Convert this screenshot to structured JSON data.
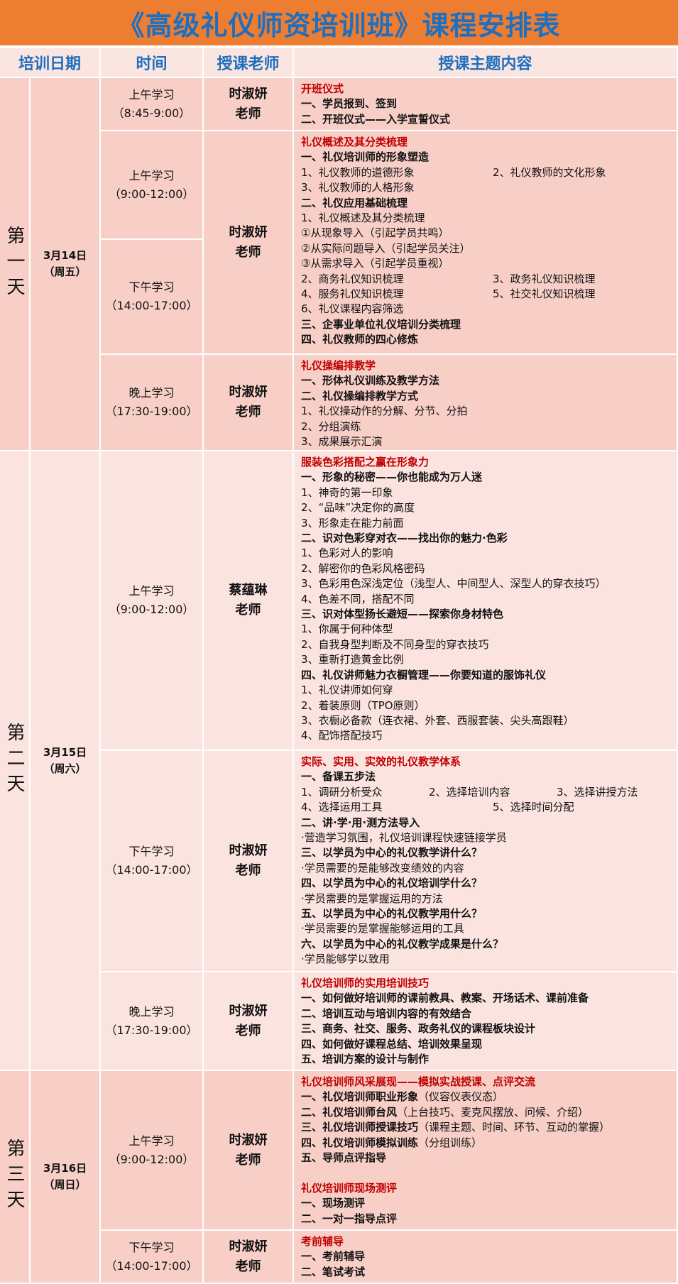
{
  "title": "《高级礼仪师资培训班》课程安排表",
  "headers": [
    "培训日期",
    "时间",
    "授课老师",
    "授课主题内容"
  ],
  "colors": {
    "title_bg": "#ED7D31",
    "title_text": "#1F6FC0",
    "heading_red": "#C00000",
    "row_dark": "#F8CFC7",
    "row_light": "#FBE4E0"
  },
  "days": [
    {
      "day": "第一天",
      "date": "3月14日",
      "weekday": "（周五）"
    },
    {
      "day": "第二天",
      "date": "3月15日",
      "weekday": "（周六）"
    },
    {
      "day": "第三天",
      "date": "3月16日",
      "weekday": "（周日）"
    }
  ],
  "sessions": [
    {
      "period": "上午学习",
      "time": "（8:45-9:00）"
    },
    {
      "period": "上午学习",
      "time": "（9:00-12:00）"
    },
    {
      "period": "下午学习",
      "time": "（14:00-17:00）"
    },
    {
      "period": "晚上学习",
      "time": "（17:30-19:00）"
    },
    {
      "period": "上午学习",
      "time": "（9:00-12:00）"
    },
    {
      "period": "下午学习",
      "time": "（14:00-17:00）"
    },
    {
      "period": "晚上学习",
      "time": "（17:30-19:00）"
    },
    {
      "period": "上午学习",
      "time": "（9:00-12:00）"
    },
    {
      "period": "下午学习",
      "time": "（14:00-17:00）"
    }
  ],
  "teachers": [
    {
      "name": "时淑妍",
      "title": "老师"
    },
    {
      "name": "时淑妍",
      "title": "老师"
    },
    {
      "name": "时淑妍",
      "title": "老师"
    },
    {
      "name": "蔡蕴琳",
      "title": "老师"
    },
    {
      "name": "时淑妍",
      "title": "老师"
    },
    {
      "name": "时淑妍",
      "title": "老师"
    },
    {
      "name": "时淑妍",
      "title": "老师"
    },
    {
      "name": "时淑妍",
      "title": "老师"
    }
  ],
  "contents": [
    [
      {
        "s": "r",
        "t": "开班仪式"
      },
      {
        "s": "b",
        "t": "一、学员报到、签到"
      },
      {
        "s": "b",
        "t": "二、开班仪式——入学宣誓仪式"
      }
    ],
    [
      {
        "s": "r",
        "t": "礼仪概述及其分类梳理"
      },
      {
        "s": "b",
        "t": "一、礼仪培训师的形象塑造"
      },
      {
        "s": "n",
        "cols": [
          "1、礼仪教师的道德形象",
          "2、礼仪教师的文化形象"
        ]
      },
      {
        "s": "n",
        "t": "3、礼仪教师的人格形象"
      },
      {
        "s": "b",
        "t": "二、礼仪应用基础梳理"
      },
      {
        "s": "n",
        "t": "1、礼仪概述及其分类梳理"
      },
      {
        "s": "n",
        "t": "①从现象导入（引起学员共鸣）"
      },
      {
        "s": "n",
        "t": "②从实际问题导入（引起学员关注）"
      },
      {
        "s": "n",
        "t": "③从需求导入（引起学员重视）"
      },
      {
        "s": "n",
        "cols": [
          "2、商务礼仪知识梳理",
          "3、政务礼仪知识梳理"
        ]
      },
      {
        "s": "n",
        "cols": [
          "4、服务礼仪知识梳理",
          "5、社交礼仪知识梳理"
        ]
      },
      {
        "s": "n",
        "t": "6、礼仪课程内容筛选"
      },
      {
        "s": "b",
        "t": "三、企事业单位礼仪培训分类梳理"
      },
      {
        "s": "b",
        "t": "四、礼仪教师的四心修炼"
      }
    ],
    [
      {
        "s": "r",
        "t": "礼仪操编排教学"
      },
      {
        "s": "b",
        "t": "一、形体礼仪训练及教学方法"
      },
      {
        "s": "b",
        "t": "二、礼仪操编排教学方式"
      },
      {
        "s": "n",
        "t": "1、礼仪操动作的分解、分节、分拍"
      },
      {
        "s": "n",
        "t": "2、分组演练"
      },
      {
        "s": "n",
        "t": "3、成果展示汇演"
      }
    ],
    [
      {
        "s": "r",
        "t": "服装色彩搭配之赢在形象力"
      },
      {
        "s": "b",
        "t": "一、形象的秘密——你也能成为万人迷"
      },
      {
        "s": "n",
        "t": "1、神奇的第一印象"
      },
      {
        "s": "n",
        "t": "2、“品味”决定你的高度"
      },
      {
        "s": "n",
        "t": "3、形象走在能力前面"
      },
      {
        "s": "b",
        "t": "二、识对色彩穿对衣——找出你的魅力·色彩"
      },
      {
        "s": "n",
        "t": "1、色彩对人的影响"
      },
      {
        "s": "n",
        "t": "2、解密你的色彩风格密码"
      },
      {
        "s": "n",
        "t": "3、色彩用色深浅定位（浅型人、中间型人、深型人的穿衣技巧）"
      },
      {
        "s": "n",
        "t": "4、色差不同，搭配不同"
      },
      {
        "s": "b",
        "t": "三、识对体型扬长避短——探索你身材特色"
      },
      {
        "s": "n",
        "t": "1、你属于何种体型"
      },
      {
        "s": "n",
        "t": "2、自我身型判断及不同身型的穿衣技巧"
      },
      {
        "s": "n",
        "t": "3、重新打造黄金比例"
      },
      {
        "s": "b",
        "t": "四、礼仪讲师魅力衣橱管理——你要知道的服饰礼仪"
      },
      {
        "s": "n",
        "t": "1、礼仪讲师如何穿"
      },
      {
        "s": "n",
        "t": "2、着装原则（TPO原则）"
      },
      {
        "s": "n",
        "t": "3、衣橱必备款（连衣裙、外套、西服套装、尖头高跟鞋）"
      },
      {
        "s": "n",
        "t": "4、配饰搭配技巧"
      }
    ],
    [
      {
        "s": "r",
        "t": "实际、实用、实效的礼仪教学体系"
      },
      {
        "s": "b",
        "t": "一、备课五步法"
      },
      {
        "s": "n",
        "cols": [
          "1、调研分析受众",
          "2、选择培训内容",
          "3、选择讲授方法"
        ]
      },
      {
        "s": "n",
        "cols": [
          "4、选择运用工具",
          "5、选择时间分配"
        ]
      },
      {
        "s": "b",
        "t": "二、讲·学·用·测方法导入"
      },
      {
        "s": "n",
        "t": "·营造学习氛围，礼仪培训课程快速链接学员"
      },
      {
        "s": "b",
        "t": "三、以学员为中心的礼仪教学讲什么？"
      },
      {
        "s": "n",
        "t": "·学员需要的是能够改变绩效的内容"
      },
      {
        "s": "b",
        "t": "四、以学员为中心的礼仪培训学什么？"
      },
      {
        "s": "n",
        "t": "·学员需要的是掌握运用的方法"
      },
      {
        "s": "b",
        "t": "五、以学员为中心的礼仪教学用什么？"
      },
      {
        "s": "n",
        "t": "·学员需要的是掌握能够运用的工具"
      },
      {
        "s": "b",
        "t": "六、以学员为中心的礼仪教学成果是什么？"
      },
      {
        "s": "n",
        "t": "·学员能够学以致用"
      }
    ],
    [
      {
        "s": "r",
        "t": "礼仪培训师的实用培训技巧"
      },
      {
        "s": "b",
        "t": "一、如何做好培训师的课前教具、教案、开场话术、课前准备"
      },
      {
        "s": "b",
        "t": "二、培训互动与培训内容的有效结合"
      },
      {
        "s": "b",
        "t": "三、商务、社交、服务、政务礼仪的课程板块设计"
      },
      {
        "s": "b",
        "t": "四、如何做好课程总结、培训效果呈现"
      },
      {
        "s": "b",
        "t": "五、培训方案的设计与制作"
      }
    ],
    [
      {
        "s": "r",
        "t": "礼仪培训师风采展现——模拟实战授课、点评交流"
      },
      {
        "s": "b",
        "t": "一、礼仪培训师职业形象",
        "n": "（仪容仪表仪态）"
      },
      {
        "s": "b",
        "t": "二、礼仪培训师台风",
        "n": "（上台技巧、麦克风摆放、问候、介绍）"
      },
      {
        "s": "b",
        "t": "三、礼仪培训师授课技巧",
        "n": "（课程主题、时间、环节、互动的掌握）"
      },
      {
        "s": "b",
        "t": "四、礼仪培训师模拟训练",
        "n": "（分组训练）"
      },
      {
        "s": "b",
        "t": "五、导师点评指导"
      },
      {
        "s": "n",
        "t": ""
      },
      {
        "s": "r",
        "t": "礼仪培训师现场测评"
      },
      {
        "s": "b",
        "t": "一、现场测评"
      },
      {
        "s": "b",
        "t": "二、一对一指导点评"
      }
    ],
    [
      {
        "s": "r",
        "t": "考前辅导"
      },
      {
        "s": "b",
        "t": "一、考前辅导"
      },
      {
        "s": "b",
        "t": "二、笔试考试"
      }
    ]
  ]
}
